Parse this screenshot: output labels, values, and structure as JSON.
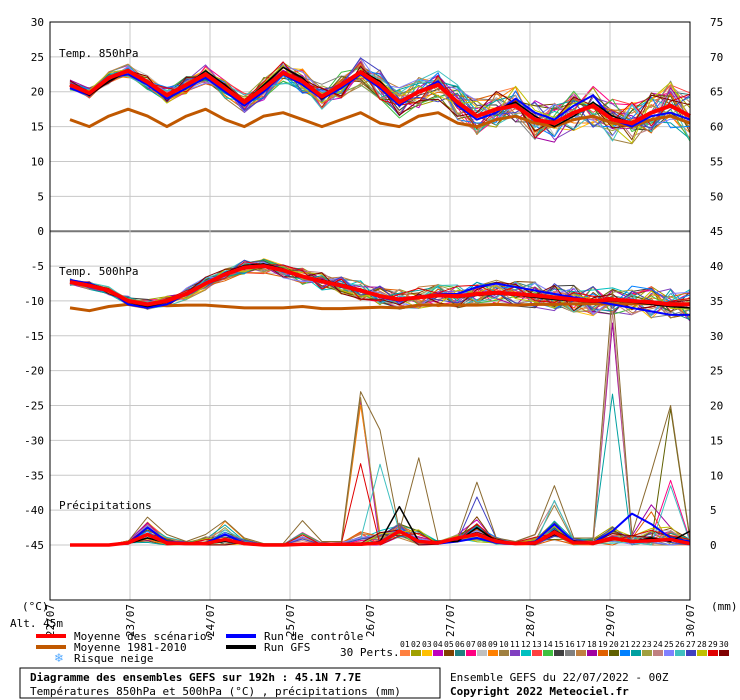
{
  "chart_data": {
    "type": "line",
    "title": "Diagramme des ensembles GEFS sur 192h : 45.1N 7.7E",
    "subtitle": "Températures 850hPa et 500hPa (°C) , précipitations (mm)",
    "run_info": "Ensemble GEFS du 22/07/2022 - 00Z",
    "copyright": "Copyright 2022 Meteociel.fr",
    "altitude": "Alt. 45m",
    "left_axis_unit": "(°C)",
    "right_axis_unit": "(mm)",
    "left_ticks": [
      30,
      25,
      20,
      15,
      10,
      5,
      0,
      -5,
      -10,
      -15,
      -20,
      -25,
      -30,
      -35,
      -40,
      -45
    ],
    "right_ticks": [
      75,
      70,
      65,
      60,
      55,
      50,
      45,
      40,
      35,
      30,
      25,
      20,
      15,
      10,
      5,
      0
    ],
    "ylim_left": [
      -45,
      30
    ],
    "x_ticks": [
      "22/07",
      "23/07",
      "24/07",
      "25/07",
      "26/07",
      "27/07",
      "28/07",
      "29/07",
      "30/07"
    ],
    "panel_labels": {
      "t850": "Temp. 850hPa",
      "t500": "Temp. 500hPa",
      "precip": "Précipitations"
    },
    "t850": {
      "mean": [
        21.0,
        19.8,
        22.0,
        23.0,
        21.4,
        19.5,
        21.0,
        22.5,
        20.5,
        18.5,
        20.5,
        22.7,
        21.5,
        19.3,
        21.0,
        22.8,
        21.0,
        18.5,
        20.0,
        21.0,
        18.5,
        16.5,
        17.5,
        18.0,
        16.0,
        15.5,
        17.0,
        18.0,
        16.0,
        15.5,
        17.0,
        18.0,
        16.5
      ],
      "climate": [
        16.0,
        15.0,
        16.5,
        17.5,
        16.5,
        15.0,
        16.5,
        17.5,
        16.0,
        15.0,
        16.5,
        17.0,
        16.0,
        15.0,
        16.0,
        17.0,
        15.5,
        15.0,
        16.5,
        17.0,
        15.5,
        15.0,
        16.0,
        16.5,
        15.5,
        15.0,
        16.0,
        16.5,
        15.5,
        15.0,
        16.0,
        16.5,
        15.5
      ],
      "control": [
        20.5,
        19.5,
        22.0,
        22.5,
        21.0,
        19.0,
        20.5,
        22.0,
        20.0,
        18.0,
        20.0,
        22.5,
        21.0,
        19.0,
        20.5,
        22.5,
        20.5,
        18.0,
        20.0,
        21.5,
        18.0,
        16.0,
        17.0,
        19.0,
        17.0,
        16.0,
        18.0,
        19.5,
        16.0,
        15.0,
        16.5,
        17.0,
        16.0
      ],
      "gfs": [
        21.0,
        19.5,
        21.5,
        23.0,
        21.5,
        19.5,
        21.0,
        23.0,
        21.0,
        18.5,
        21.0,
        23.5,
        22.0,
        19.0,
        21.0,
        23.0,
        21.5,
        18.5,
        20.0,
        21.0,
        18.5,
        16.5,
        17.5,
        18.5,
        16.5,
        15.0,
        16.5,
        18.5,
        16.5,
        15.5,
        17.0,
        18.0,
        16.5
      ]
    },
    "t500": {
      "mean": [
        -7.3,
        -7.8,
        -8.5,
        -10.0,
        -10.5,
        -10.0,
        -9.0,
        -7.5,
        -6.2,
        -5.2,
        -5.0,
        -5.6,
        -6.5,
        -7.2,
        -7.8,
        -8.5,
        -9.3,
        -9.8,
        -9.5,
        -9.2,
        -9.3,
        -9.0,
        -8.8,
        -9.0,
        -9.2,
        -9.5,
        -9.8,
        -10.0,
        -9.8,
        -10.0,
        -10.2,
        -10.5,
        -10.5
      ],
      "climate": [
        -11.0,
        -11.4,
        -10.8,
        -10.5,
        -10.5,
        -10.7,
        -10.6,
        -10.6,
        -10.8,
        -11.0,
        -11.0,
        -11.0,
        -10.8,
        -11.1,
        -11.1,
        -11.0,
        -10.9,
        -11.0,
        -10.6,
        -10.6,
        -10.6,
        -10.6,
        -10.5,
        -10.6,
        -10.5,
        -10.5,
        -10.4,
        -10.4,
        -10.4,
        -10.4,
        -10.4,
        -10.4,
        -10.4
      ],
      "control": [
        -7.0,
        -7.5,
        -8.5,
        -10.5,
        -11.0,
        -10.5,
        -9.0,
        -7.5,
        -6.0,
        -5.0,
        -4.8,
        -5.5,
        -6.5,
        -7.0,
        -8.0,
        -8.5,
        -9.5,
        -10.0,
        -9.5,
        -9.0,
        -9.0,
        -8.0,
        -7.5,
        -8.0,
        -8.5,
        -9.0,
        -9.5,
        -10.0,
        -10.5,
        -11.0,
        -11.5,
        -12.0,
        -12.0
      ],
      "gfs": [
        -7.2,
        -7.6,
        -8.3,
        -10.2,
        -10.8,
        -10.2,
        -9.0,
        -7.4,
        -6.0,
        -4.9,
        -4.7,
        -5.4,
        -6.4,
        -7.0,
        -7.6,
        -8.3,
        -9.2,
        -9.7,
        -9.4,
        -9.2,
        -9.5,
        -9.2,
        -9.0,
        -9.2,
        -9.5,
        -9.8,
        -10.0,
        -10.2,
        -10.0,
        -10.2,
        -10.5,
        -10.8,
        -11.0
      ]
    },
    "precip_mm": {
      "mean": [
        0,
        0,
        0,
        0.3,
        1.5,
        0.3,
        0.2,
        0.2,
        0.8,
        0.2,
        0,
        0,
        0.1,
        0.1,
        0.1,
        0.1,
        0.3,
        2.0,
        0.5,
        0.3,
        1.0,
        1.5,
        0.5,
        0.2,
        0.3,
        1.8,
        0.3,
        0.3,
        1.0,
        0.5,
        0.6,
        0.8,
        0.2
      ],
      "control": [
        0,
        0,
        0,
        0.2,
        2.5,
        0.5,
        0.2,
        0.3,
        1.5,
        0.3,
        0,
        0,
        0,
        0,
        0,
        0,
        0.5,
        2.0,
        0.5,
        0.2,
        0.5,
        1.0,
        0.3,
        0.2,
        0.5,
        3.0,
        0.5,
        0.3,
        2.0,
        4.5,
        3.0,
        1.0,
        0.5
      ],
      "gfs": [
        0,
        0,
        0,
        0.2,
        1.0,
        0.3,
        0.2,
        0.2,
        0.5,
        0.2,
        0,
        0,
        0,
        0,
        0,
        0,
        0.5,
        5.5,
        0.5,
        0.5,
        0.5,
        2.5,
        0.5,
        0.2,
        0.3,
        1.5,
        0.5,
        0.3,
        1.0,
        0.5,
        1.0,
        0.5,
        2.0
      ],
      "max_spike": [
        0,
        0,
        0,
        0.5,
        4.0,
        1.5,
        0.5,
        1.5,
        3.5,
        1.0,
        0.2,
        0.2,
        3.5,
        0.5,
        0.5,
        22.0,
        16.5,
        2.0,
        12.5,
        0.5,
        1.0,
        9.0,
        1.0,
        0.5,
        1.5,
        8.5,
        1.0,
        1.0,
        36.5,
        1.5,
        10.5,
        20.0,
        1.0
      ]
    },
    "legend": [
      {
        "name": "Moyenne des scénarios",
        "color": "#ff0000"
      },
      {
        "name": "Run de contrôle",
        "color": "#0000ff"
      },
      {
        "name": "Moyenne 1981-2010",
        "color": "#c05800"
      },
      {
        "name": "Run GFS",
        "color": "#000000"
      },
      {
        "name": "Risque neige",
        "color": "#55aaff"
      }
    ],
    "perturbation_label": "30 Perts.",
    "perturbation_numbers": [
      "01",
      "02",
      "03",
      "04",
      "05",
      "06",
      "07",
      "08",
      "09",
      "10",
      "11",
      "12",
      "13",
      "14",
      "15",
      "16",
      "17",
      "18",
      "19",
      "20",
      "21",
      "22",
      "23",
      "24",
      "25",
      "26",
      "27",
      "28",
      "29",
      "30"
    ],
    "perturbation_colors": [
      "#ff8040",
      "#a0a000",
      "#ffc000",
      "#c000c0",
      "#804000",
      "#208080",
      "#ff0080",
      "#c0c0c0",
      "#ff8000",
      "#a08040",
      "#8040c0",
      "#00c0c0",
      "#ff4040",
      "#40c040",
      "#404040",
      "#808080",
      "#c08040",
      "#a000a0",
      "#e06000",
      "#606000",
      "#0080ff",
      "#00a0a0",
      "#a0a040",
      "#c08080",
      "#8080ff",
      "#40c0c0",
      "#4040c0",
      "#c0c000",
      "#e00000",
      "#800000"
    ],
    "pert_colors_ext": [
      "#ff9060",
      "#9060ff",
      "#60c060",
      "#e0a000",
      "#a0a0ff",
      "#c06060",
      "#40a0ff",
      "#d080d0",
      "#80c000",
      "#ff6060"
    ]
  }
}
